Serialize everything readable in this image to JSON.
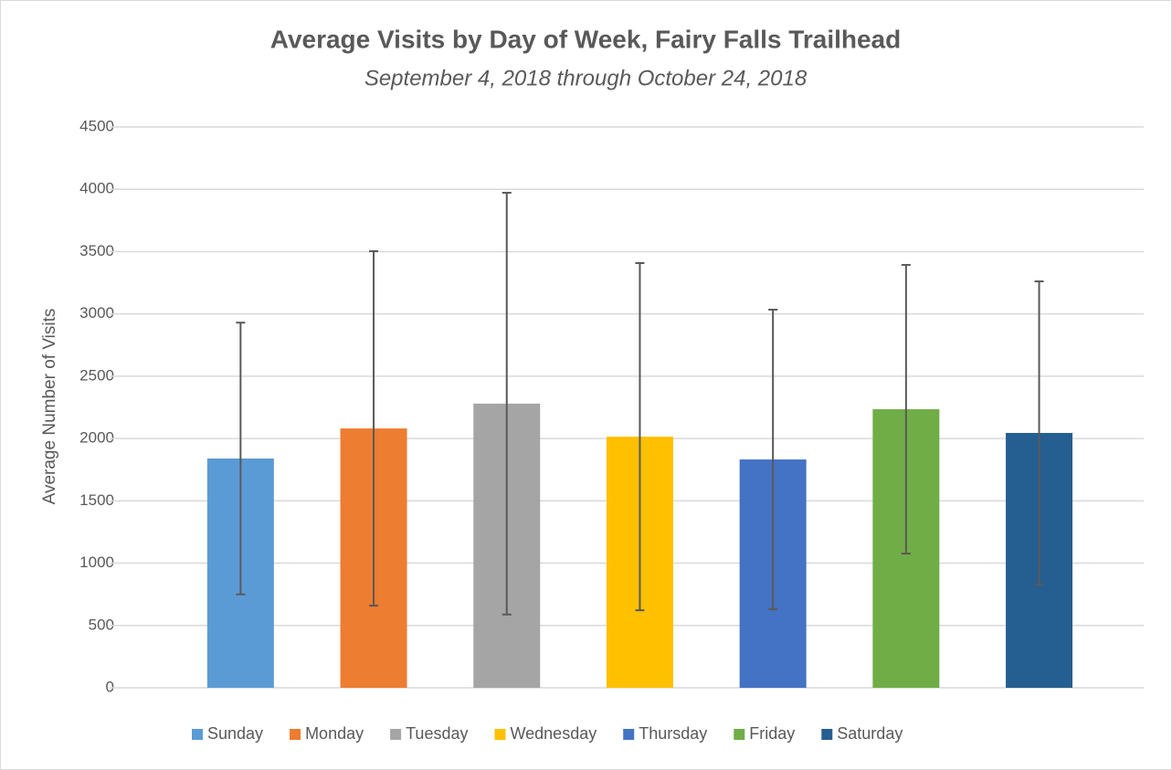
{
  "chart_data": {
    "type": "bar",
    "title": "Average Visits by Day of Week, Fairy Falls Trailhead",
    "subtitle": "September 4, 2018 through October 24, 2018",
    "y_label": "Average Number of Visits",
    "ylim": [
      0,
      4500
    ],
    "yticks": [
      0,
      500,
      1000,
      1500,
      2000,
      2500,
      3000,
      3500,
      4000,
      4500
    ],
    "grid": true,
    "legend": "bottom",
    "series": [
      {
        "name": "Sunday",
        "color": "#5b9bd5",
        "values": [
          1840
        ],
        "errors": [
          1090
        ]
      },
      {
        "name": "Monday",
        "color": "#ed7d31",
        "values": [
          2081
        ],
        "errors": [
          1422
        ]
      },
      {
        "name": "Tuesday",
        "color": "#a5a5a5",
        "values": [
          2280
        ],
        "errors": [
          1692
        ]
      },
      {
        "name": "Wednesday",
        "color": "#ffc000",
        "values": [
          2015
        ],
        "errors": [
          1393
        ]
      },
      {
        "name": "Thursday",
        "color": "#4472c4",
        "values": [
          1832
        ],
        "errors": [
          1202
        ]
      },
      {
        "name": "Friday",
        "color": "#70ad47",
        "values": [
          2235
        ],
        "errors": [
          1158
        ]
      },
      {
        "name": "Saturday",
        "color": "#255e91",
        "values": [
          2045
        ],
        "errors": [
          1216
        ]
      }
    ]
  }
}
